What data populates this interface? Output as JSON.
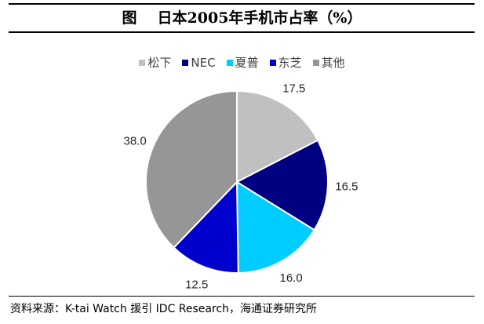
{
  "title": {
    "fig_label": "图",
    "text": "日本2005年手机市占率（%）"
  },
  "chart_data": {
    "type": "pie",
    "categories": [
      "松下",
      "NEC",
      "夏普",
      "东芝",
      "其他"
    ],
    "values": [
      17.5,
      16.5,
      16.0,
      12.5,
      38.0
    ],
    "value_labels": [
      "17.5",
      "16.5",
      "16.0",
      "12.5",
      "38.0"
    ],
    "colors": [
      "#c0c0c0",
      "#000080",
      "#00ccff",
      "#0000cc",
      "#969696"
    ],
    "start_angle_deg": 0,
    "direction": "clockwise",
    "legend_position": "top",
    "slice_border_color": "#ffffff"
  },
  "source": "资料来源：K-tai Watch 援引 IDC Research，海通证券研究所"
}
